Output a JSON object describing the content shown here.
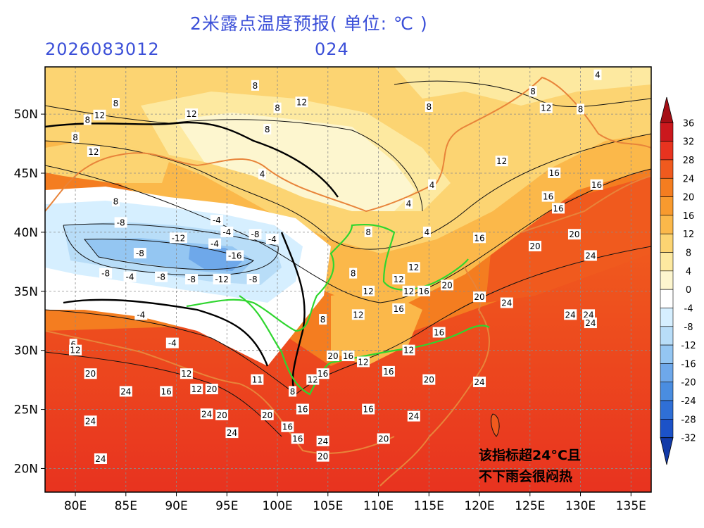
{
  "header": {
    "title": "2米露点温度预报( 单位: ℃ )",
    "init_time": "2026083012",
    "lead_hours": "024"
  },
  "map": {
    "lon_ticks": [
      "80E",
      "85E",
      "90E",
      "95E",
      "100E",
      "105E",
      "110E",
      "115E",
      "120E",
      "125E",
      "130E",
      "135E"
    ],
    "lat_ticks": [
      "50N",
      "45N",
      "40N",
      "35N",
      "30N",
      "25N",
      "20N"
    ],
    "lon_range": [
      77,
      137
    ],
    "lat_range": [
      18,
      54
    ],
    "annotation": [
      "该指标超24°C且",
      "不下雨会很闷热"
    ],
    "contour_labels": [
      {
        "lon": 91.5,
        "lat": 50.0,
        "text": "12"
      },
      {
        "lon": 81.2,
        "lat": 49.5,
        "text": "8"
      },
      {
        "lon": 84.0,
        "lat": 50.9,
        "text": "8"
      },
      {
        "lon": 82.4,
        "lat": 49.9,
        "text": "12"
      },
      {
        "lon": 97.8,
        "lat": 52.4,
        "text": "8"
      },
      {
        "lon": 100.0,
        "lat": 50.5,
        "text": "8"
      },
      {
        "lon": 102.4,
        "lat": 51.0,
        "text": "12"
      },
      {
        "lon": 115.0,
        "lat": 50.6,
        "text": "8"
      },
      {
        "lon": 125.3,
        "lat": 51.9,
        "text": "8"
      },
      {
        "lon": 126.6,
        "lat": 50.5,
        "text": "12"
      },
      {
        "lon": 131.7,
        "lat": 53.3,
        "text": "4"
      },
      {
        "lon": 130.0,
        "lat": 50.4,
        "text": "8"
      },
      {
        "lon": 80.0,
        "lat": 48.0,
        "text": "8"
      },
      {
        "lon": 81.8,
        "lat": 46.8,
        "text": "12"
      },
      {
        "lon": 99.0,
        "lat": 48.7,
        "text": "8"
      },
      {
        "lon": 122.2,
        "lat": 46.0,
        "text": "12"
      },
      {
        "lon": 127.4,
        "lat": 45.0,
        "text": "16"
      },
      {
        "lon": 131.6,
        "lat": 44.0,
        "text": "16"
      },
      {
        "lon": 126.8,
        "lat": 43.0,
        "text": "16"
      },
      {
        "lon": 127.8,
        "lat": 42.0,
        "text": "16"
      },
      {
        "lon": 129.4,
        "lat": 39.8,
        "text": "20"
      },
      {
        "lon": 125.5,
        "lat": 38.8,
        "text": "20"
      },
      {
        "lon": 131.0,
        "lat": 38.0,
        "text": "24"
      },
      {
        "lon": 98.5,
        "lat": 44.9,
        "text": "4"
      },
      {
        "lon": 115.3,
        "lat": 44.0,
        "text": "4"
      },
      {
        "lon": 113.0,
        "lat": 42.4,
        "text": "4"
      },
      {
        "lon": 84.0,
        "lat": 42.6,
        "text": "8"
      },
      {
        "lon": 84.5,
        "lat": 40.8,
        "text": "-8"
      },
      {
        "lon": 94.0,
        "lat": 41.0,
        "text": "-4"
      },
      {
        "lon": 95.0,
        "lat": 40.0,
        "text": "-4"
      },
      {
        "lon": 97.8,
        "lat": 39.8,
        "text": "-8"
      },
      {
        "lon": 99.5,
        "lat": 39.4,
        "text": "-4"
      },
      {
        "lon": 90.2,
        "lat": 39.5,
        "text": "-12"
      },
      {
        "lon": 86.4,
        "lat": 38.2,
        "text": "-8"
      },
      {
        "lon": 93.8,
        "lat": 39.0,
        "text": "-4"
      },
      {
        "lon": 95.8,
        "lat": 38.0,
        "text": "-16"
      },
      {
        "lon": 83.0,
        "lat": 36.5,
        "text": "-8"
      },
      {
        "lon": 85.4,
        "lat": 36.2,
        "text": "-4"
      },
      {
        "lon": 88.5,
        "lat": 36.2,
        "text": "-8"
      },
      {
        "lon": 97.6,
        "lat": 36.0,
        "text": "-8"
      },
      {
        "lon": 94.5,
        "lat": 36.0,
        "text": "-12"
      },
      {
        "lon": 91.5,
        "lat": 36.0,
        "text": "-8"
      },
      {
        "lon": 86.5,
        "lat": 33.0,
        "text": "-4"
      },
      {
        "lon": 79.8,
        "lat": 30.5,
        "text": "6"
      },
      {
        "lon": 89.6,
        "lat": 30.6,
        "text": "-4"
      },
      {
        "lon": 109.0,
        "lat": 40.0,
        "text": "8"
      },
      {
        "lon": 114.8,
        "lat": 40.0,
        "text": "4"
      },
      {
        "lon": 107.5,
        "lat": 36.5,
        "text": "8"
      },
      {
        "lon": 109.0,
        "lat": 35.0,
        "text": "12"
      },
      {
        "lon": 113.5,
        "lat": 37.0,
        "text": "12"
      },
      {
        "lon": 112.0,
        "lat": 36.0,
        "text": "12"
      },
      {
        "lon": 114.5,
        "lat": 35.0,
        "text": "16"
      },
      {
        "lon": 113.0,
        "lat": 35.0,
        "text": "12"
      },
      {
        "lon": 116.8,
        "lat": 35.5,
        "text": "20"
      },
      {
        "lon": 120.0,
        "lat": 34.5,
        "text": "20"
      },
      {
        "lon": 122.7,
        "lat": 34.0,
        "text": "24"
      },
      {
        "lon": 120.0,
        "lat": 39.5,
        "text": "16"
      },
      {
        "lon": 108.0,
        "lat": 33.0,
        "text": "12"
      },
      {
        "lon": 104.5,
        "lat": 32.6,
        "text": "8"
      },
      {
        "lon": 112.0,
        "lat": 33.5,
        "text": "16"
      },
      {
        "lon": 116.0,
        "lat": 31.5,
        "text": "16"
      },
      {
        "lon": 113.0,
        "lat": 30.0,
        "text": "12"
      },
      {
        "lon": 107.0,
        "lat": 29.5,
        "text": "16"
      },
      {
        "lon": 105.5,
        "lat": 29.5,
        "text": "20"
      },
      {
        "lon": 108.5,
        "lat": 29.0,
        "text": "12"
      },
      {
        "lon": 111.0,
        "lat": 28.2,
        "text": "16"
      },
      {
        "lon": 115.0,
        "lat": 27.5,
        "text": "20"
      },
      {
        "lon": 120.0,
        "lat": 27.3,
        "text": "24"
      },
      {
        "lon": 129.0,
        "lat": 33.0,
        "text": "24"
      },
      {
        "lon": 130.8,
        "lat": 33.0,
        "text": "24"
      },
      {
        "lon": 131.0,
        "lat": 32.3,
        "text": "24"
      },
      {
        "lon": 80.0,
        "lat": 30.0,
        "text": "12"
      },
      {
        "lon": 81.5,
        "lat": 28.0,
        "text": "20"
      },
      {
        "lon": 85.0,
        "lat": 26.5,
        "text": "24"
      },
      {
        "lon": 89.0,
        "lat": 26.5,
        "text": "16"
      },
      {
        "lon": 92.0,
        "lat": 26.7,
        "text": "12"
      },
      {
        "lon": 93.5,
        "lat": 26.7,
        "text": "20"
      },
      {
        "lon": 91.0,
        "lat": 28.0,
        "text": "12"
      },
      {
        "lon": 98.0,
        "lat": 27.5,
        "text": "11"
      },
      {
        "lon": 101.5,
        "lat": 26.5,
        "text": "8"
      },
      {
        "lon": 103.5,
        "lat": 27.5,
        "text": "12"
      },
      {
        "lon": 104.5,
        "lat": 28.0,
        "text": "16"
      },
      {
        "lon": 93.0,
        "lat": 24.6,
        "text": "24"
      },
      {
        "lon": 94.5,
        "lat": 24.5,
        "text": "20"
      },
      {
        "lon": 102.5,
        "lat": 25.0,
        "text": "16"
      },
      {
        "lon": 109.0,
        "lat": 25.0,
        "text": "16"
      },
      {
        "lon": 113.5,
        "lat": 24.4,
        "text": "24"
      },
      {
        "lon": 99.0,
        "lat": 24.5,
        "text": "20"
      },
      {
        "lon": 101.0,
        "lat": 23.5,
        "text": "16"
      },
      {
        "lon": 81.5,
        "lat": 24.0,
        "text": "24"
      },
      {
        "lon": 82.5,
        "lat": 20.8,
        "text": "24"
      },
      {
        "lon": 95.5,
        "lat": 23.0,
        "text": "24"
      },
      {
        "lon": 104.5,
        "lat": 22.3,
        "text": "24"
      },
      {
        "lon": 104.5,
        "lat": 21.0,
        "text": "20"
      },
      {
        "lon": 110.5,
        "lat": 22.5,
        "text": "20"
      },
      {
        "lon": 102.0,
        "lat": 22.5,
        "text": "16"
      }
    ]
  },
  "colorbar": {
    "labels": [
      "36",
      "32",
      "28",
      "24",
      "20",
      "16",
      "12",
      "8",
      "4",
      "0",
      "-4",
      "-8",
      "-12",
      "-16",
      "-20",
      "-24",
      "-28",
      "-32"
    ],
    "colors": [
      "#a50f15",
      "#cb181d",
      "#e8331f",
      "#f05a1e",
      "#f47d20",
      "#f89a2e",
      "#fbb84a",
      "#fcd472",
      "#fde9a0",
      "#fdf6cf",
      "#ffffff",
      "#d6efff",
      "#b8ddf8",
      "#94c6f2",
      "#6ea8ea",
      "#4a8de0",
      "#2f6fd6",
      "#1c52c8",
      "#123aa8"
    ]
  }
}
